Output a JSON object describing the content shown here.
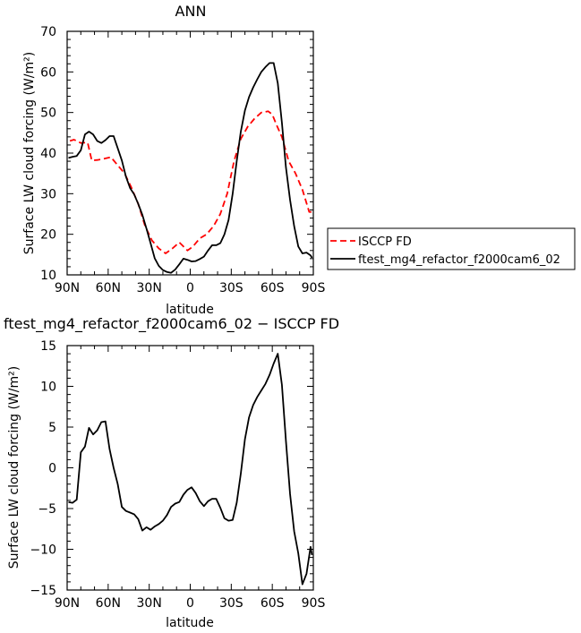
{
  "chart_data": [
    {
      "type": "line",
      "title": "ANN",
      "xlabel": "latitude",
      "ylabel": "Surface LW cloud forcing (W/m²)",
      "xlim": [
        90,
        -90
      ],
      "ylim": [
        10,
        70
      ],
      "xticks": [
        "90N",
        "60N",
        "30N",
        "0",
        "30S",
        "60S",
        "90S"
      ],
      "yticks": [
        "10",
        "20",
        "30",
        "40",
        "50",
        "60",
        "70"
      ],
      "legend_position": "right",
      "series": [
        {
          "name": "ISCCP FD",
          "color": "#ff0000",
          "dash": "dashed",
          "x": [
            88,
            85,
            80,
            75,
            72,
            68,
            63,
            58,
            53,
            48,
            43,
            38,
            33,
            28,
            23,
            18,
            13,
            8,
            5,
            2,
            -2,
            -7,
            -12,
            -17,
            -22,
            -27,
            -32,
            -37,
            -42,
            -47,
            -52,
            -57,
            -60,
            -63,
            -67,
            -72,
            -77,
            -82,
            -87,
            -89
          ],
          "values": [
            43,
            43.3,
            42.5,
            42.6,
            38.2,
            38.3,
            38.6,
            39,
            37,
            35,
            31.5,
            27.5,
            22,
            18.5,
            16.5,
            15.3,
            16.5,
            18,
            17,
            16,
            17,
            19,
            20,
            22,
            25,
            30,
            38,
            43.5,
            46.5,
            48.5,
            50,
            50.3,
            49.5,
            47,
            44,
            38,
            35,
            31,
            25.5,
            25.5
          ]
        },
        {
          "name": "ftest_mg4_refactor_f2000cam6_02",
          "color": "#000000",
          "dash": "solid",
          "x": [
            89,
            86,
            83,
            80,
            77,
            74,
            71,
            68,
            65,
            62,
            59,
            56,
            53,
            50,
            47,
            44,
            41,
            38,
            35,
            32,
            29,
            26,
            23,
            20,
            17,
            14,
            11,
            8,
            5,
            2,
            -1,
            -4,
            -7,
            -10,
            -13,
            -16,
            -19,
            -22,
            -25,
            -28,
            -31,
            -34,
            -37,
            -40,
            -43,
            -46,
            -49,
            -52,
            -55,
            -58,
            -61,
            -64,
            -67,
            -70,
            -73,
            -76,
            -79,
            -82,
            -85,
            -88,
            -89
          ],
          "values": [
            38.8,
            39.1,
            39.3,
            40.7,
            44.6,
            45.3,
            44.6,
            43,
            42.5,
            43.2,
            44.2,
            44.2,
            41.2,
            38.2,
            34.2,
            31.4,
            29.8,
            27.5,
            24.8,
            21.4,
            17.8,
            14.1,
            12.2,
            11.2,
            10.7,
            10.5,
            11.3,
            12.6,
            14,
            13.7,
            13.3,
            13.4,
            13.9,
            14.5,
            16,
            17.3,
            17.3,
            17.8,
            20,
            23.5,
            30,
            38,
            45.3,
            50.5,
            53.8,
            56.2,
            58.2,
            60,
            61.2,
            62.2,
            62.2,
            57.2,
            47.5,
            36.5,
            28.5,
            22,
            17,
            15.3,
            15.5,
            14.8,
            14.2
          ]
        }
      ]
    },
    {
      "type": "line",
      "title": "ftest_mg4_refactor_f2000cam6_02 − ISCCP FD",
      "xlabel": "latitude",
      "ylabel": "Surface LW cloud forcing (W/m²)",
      "xlim": [
        90,
        -90
      ],
      "ylim": [
        -15,
        15
      ],
      "xticks": [
        "90N",
        "60N",
        "30N",
        "0",
        "30S",
        "60S",
        "90S"
      ],
      "yticks": [
        "−15",
        "−10",
        "−5",
        "0",
        "5",
        "10",
        "15"
      ],
      "series": [
        {
          "color": "#000000",
          "dash": "solid",
          "x": [
            89,
            86,
            83,
            80,
            77,
            74,
            71,
            68,
            65,
            62,
            59,
            56,
            53,
            50,
            47,
            44,
            41,
            38,
            35,
            32,
            29,
            26,
            23,
            20,
            17,
            14,
            11,
            8,
            5,
            2,
            -1,
            -4,
            -7,
            -10,
            -13,
            -16,
            -19,
            -22,
            -25,
            -28,
            -31,
            -34,
            -37,
            -40,
            -43,
            -46,
            -49,
            -52,
            -55,
            -58,
            -61,
            -64,
            -67,
            -70,
            -73,
            -76,
            -79,
            -82,
            -85,
            -88,
            -89
          ],
          "values": [
            -4.2,
            -4.3,
            -3.9,
            1.9,
            2.6,
            4.9,
            4.1,
            4.6,
            5.6,
            5.7,
            2.3,
            0,
            -2,
            -4.8,
            -5.3,
            -5.5,
            -5.7,
            -6.3,
            -7.7,
            -7.3,
            -7.6,
            -7.2,
            -6.9,
            -6.5,
            -5.8,
            -4.8,
            -4.4,
            -4.2,
            -3.3,
            -2.7,
            -2.4,
            -3.1,
            -4.1,
            -4.7,
            -4.1,
            -3.8,
            -3.8,
            -4.9,
            -6.2,
            -6.5,
            -6.4,
            -4.3,
            -0.7,
            3.5,
            6.2,
            7.7,
            8.7,
            9.5,
            10.3,
            11.4,
            12.8,
            14,
            10.2,
            3.3,
            -3.2,
            -7.8,
            -10.5,
            -14.3,
            -13,
            -9.7,
            -10.7
          ]
        }
      ]
    }
  ]
}
